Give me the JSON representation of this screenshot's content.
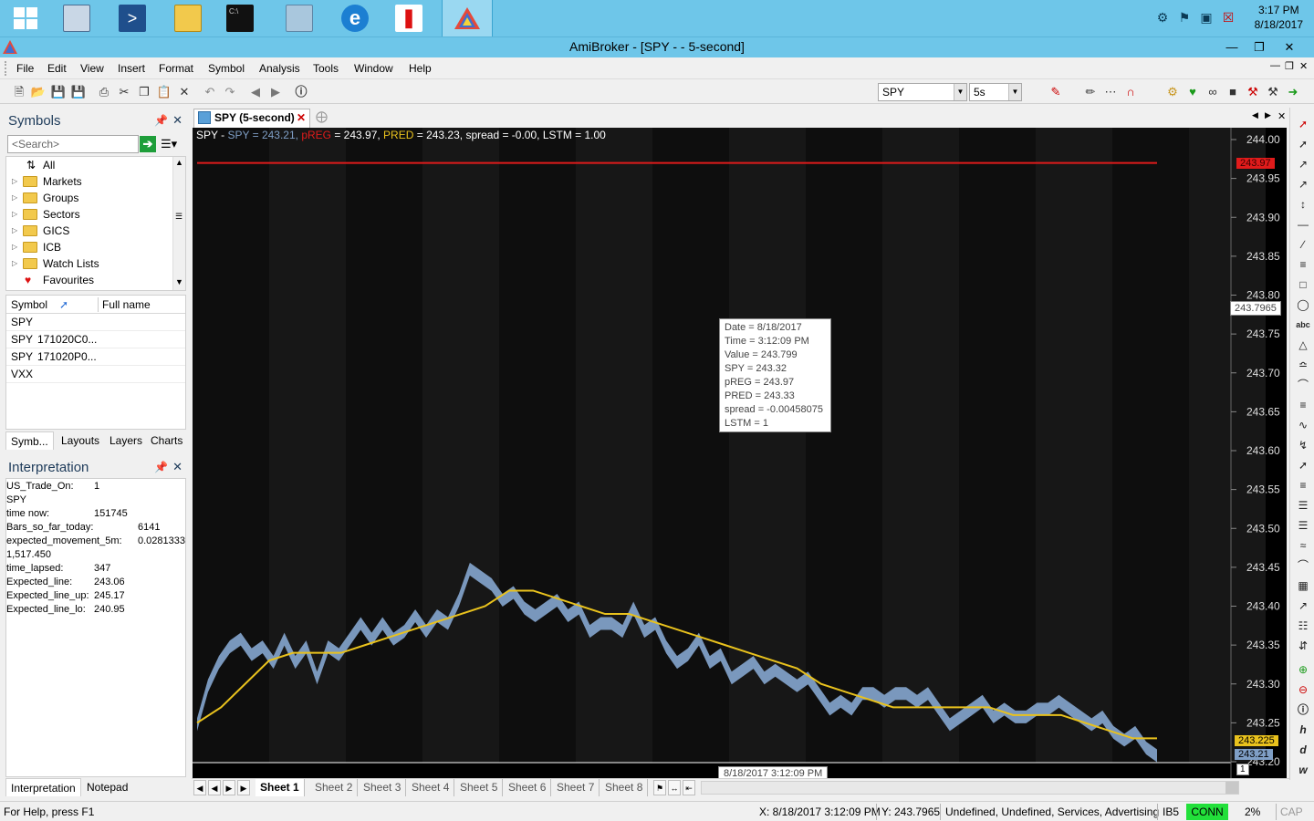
{
  "taskbar": {
    "clock_time": "3:17 PM",
    "clock_date": "8/18/2017"
  },
  "window": {
    "title": "AmiBroker - [SPY -  - 5-second]"
  },
  "menu": [
    "File",
    "Edit",
    "View",
    "Insert",
    "Format",
    "Symbol",
    "Analysis",
    "Tools",
    "Window",
    "Help"
  ],
  "toolbar": {
    "symbol_value": "SPY",
    "interval_value": "5s"
  },
  "symbols_panel": {
    "title": "Symbols",
    "search_placeholder": "<Search>",
    "tree": [
      "All",
      "Markets",
      "Groups",
      "Sectors",
      "GICS",
      "ICB",
      "Watch Lists",
      "Favourites"
    ],
    "col_symbol": "Symbol",
    "col_fullname": "Full name",
    "rows": [
      {
        "symbol": "SPY",
        "full": ""
      },
      {
        "symbol": "SPY",
        "full": "171020C0..."
      },
      {
        "symbol": "SPY",
        "full": "171020P0..."
      },
      {
        "symbol": "VXX",
        "full": ""
      }
    ],
    "tabs": [
      "Symb...",
      "Layouts",
      "Layers",
      "Charts"
    ]
  },
  "interpretation_panel": {
    "title": "Interpretation",
    "rows": [
      {
        "k": "US_Trade_On:",
        "v": "1"
      },
      {
        "k": "SPY",
        "v": ""
      },
      {
        "k": "time now:",
        "v": "151745"
      },
      {
        "k": "Bars_so_far_today:",
        "v": "6141"
      },
      {
        "k": "expected_movement_5m:",
        "v": "0.0281333"
      },
      {
        "k": "1,517.450",
        "v": ""
      },
      {
        "k": "time_lapsed:",
        "v": "347"
      },
      {
        "k": "Expected_line:",
        "v": "243.06"
      },
      {
        "k": "Expected_line_up:",
        "v": "245.17"
      },
      {
        "k": "Expected_line_lo:",
        "v": "240.95"
      }
    ],
    "tabs": [
      "Interpretation",
      "Notepad"
    ]
  },
  "chart_tab": {
    "label": "SPY (5-second)"
  },
  "chart_header": {
    "prefix": "SPY - ",
    "spy": "SPY = 243.21, ",
    "preg": "pREG",
    "preg_val": " = 243.97, ",
    "pred": "PRED",
    "pred_val": " = 243.23, spread = -0.00, LSTM = 1.00"
  },
  "tooltip": [
    "Date = 8/18/2017",
    "Time = 3:12:09 PM",
    "Value = 243.799",
    "SPY = 243.32",
    "pREG = 243.97",
    "PRED = 243.33",
    "spread =  -0.00458075",
    "LSTM = 1"
  ],
  "x_cursor_label": "8/18/2017 3:12:09 PM",
  "cursor_y_label": "243.7965",
  "markers": {
    "preg": "243.97",
    "pred": "243.225",
    "spy": "243.21",
    "page": "1"
  },
  "colors": {
    "spy": "#7f9fc6",
    "preg": "#e01b1b",
    "pred": "#e9c21d"
  },
  "chart_data": {
    "type": "line",
    "ylim": [
      243.2,
      244.0
    ],
    "yticks": [
      "244.00",
      "243.95",
      "243.90",
      "243.85",
      "243.80",
      "243.75",
      "243.70",
      "243.65",
      "243.60",
      "243.55",
      "243.50",
      "243.45",
      "243.40",
      "243.35",
      "243.30",
      "243.25",
      "243.20"
    ],
    "series": [
      {
        "name": "SPY",
        "values": [
          243.25,
          243.3,
          243.33,
          243.35,
          243.36,
          243.34,
          243.35,
          243.33,
          243.36,
          243.33,
          243.35,
          243.31,
          243.35,
          243.34,
          243.36,
          243.38,
          243.36,
          243.38,
          243.36,
          243.37,
          243.39,
          243.37,
          243.39,
          243.38,
          243.41,
          243.45,
          243.44,
          243.43,
          243.41,
          243.42,
          243.4,
          243.39,
          243.4,
          243.41,
          243.39,
          243.4,
          243.37,
          243.38,
          243.38,
          243.37,
          243.4,
          243.37,
          243.38,
          243.35,
          243.33,
          243.34,
          243.36,
          243.33,
          243.34,
          243.31,
          243.32,
          243.33,
          243.31,
          243.32,
          243.31,
          243.3,
          243.31,
          243.29,
          243.27,
          243.28,
          243.27,
          243.29,
          243.29,
          243.28,
          243.29,
          243.29,
          243.28,
          243.29,
          243.27,
          243.25,
          243.26,
          243.27,
          243.28,
          243.26,
          243.27,
          243.26,
          243.26,
          243.27,
          243.27,
          243.28,
          243.27,
          243.26,
          243.25,
          243.26,
          243.24,
          243.23,
          243.24,
          243.22,
          243.21
        ]
      },
      {
        "name": "PRED",
        "values": [
          243.25,
          243.27,
          243.3,
          243.33,
          243.34,
          243.34,
          243.34,
          243.35,
          243.36,
          243.37,
          243.38,
          243.39,
          243.4,
          243.42,
          243.42,
          243.41,
          243.4,
          243.39,
          243.39,
          243.38,
          243.37,
          243.36,
          243.35,
          243.34,
          243.33,
          243.32,
          243.3,
          243.29,
          243.28,
          243.27,
          243.27,
          243.27,
          243.27,
          243.27,
          243.26,
          243.26,
          243.26,
          243.25,
          243.24,
          243.23,
          243.23
        ]
      },
      {
        "name": "pREG",
        "values": [
          243.97,
          243.97
        ]
      }
    ]
  },
  "sheets": [
    "Sheet 1",
    "Sheet 2",
    "Sheet 3",
    "Sheet 4",
    "Sheet 5",
    "Sheet 6",
    "Sheet 7",
    "Sheet 8"
  ],
  "status": {
    "help": "For Help, press F1",
    "x": "X: 8/18/2017 3:12:09 PM",
    "y": "Y: 243.7965",
    "cat": "Undefined, Undefined, Services, Advertising",
    "feed": "IB5",
    "conn": "CONN",
    "pct": "2%",
    "cap": "CAP"
  }
}
